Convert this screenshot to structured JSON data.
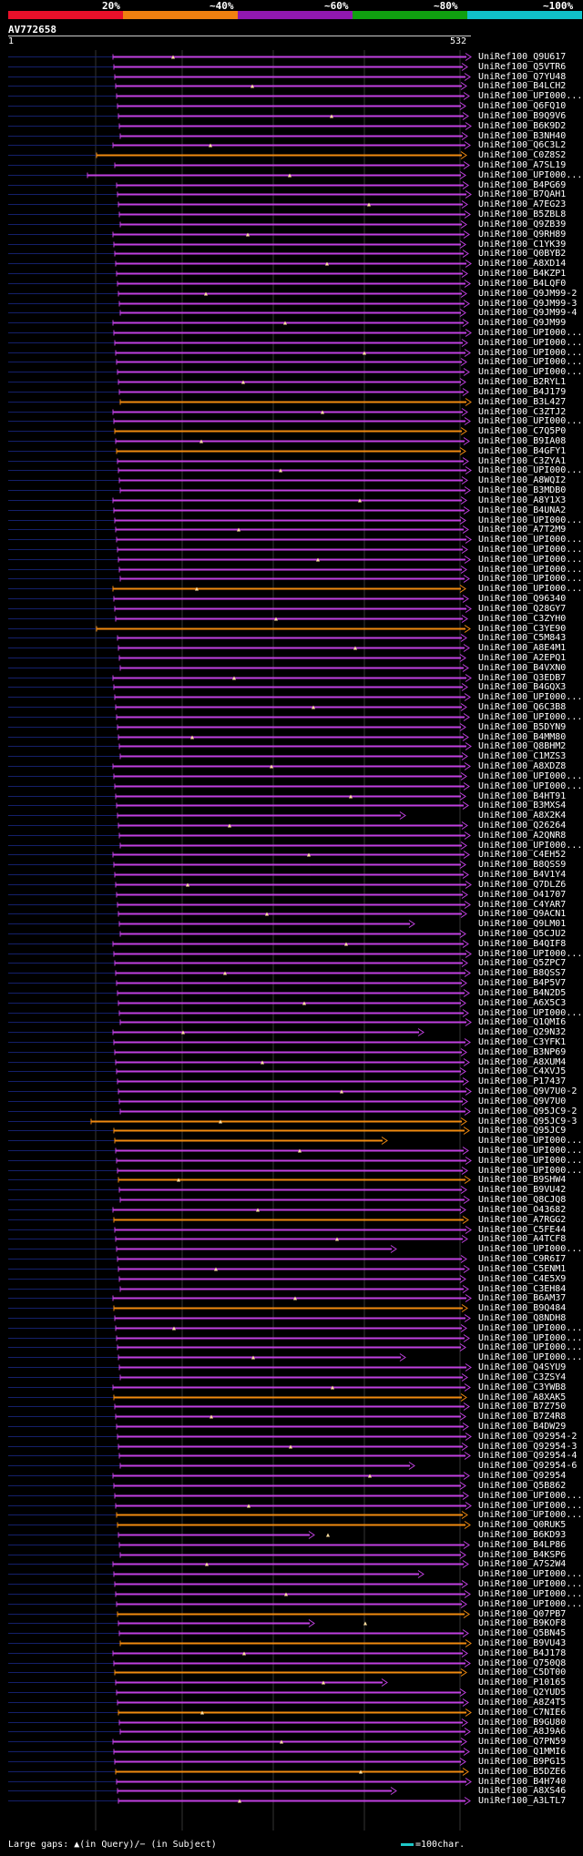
{
  "header": {
    "legend_colors": [
      "#e8102a",
      "#f08010",
      "#9018b0",
      "#10a010",
      "#10c0c8"
    ],
    "pct_labels": [
      "20%",
      "~40%",
      "~60%",
      "~80%",
      "~100%"
    ],
    "query_name": "AV772658",
    "scale_start": "1",
    "scale_end": "532"
  },
  "hit_colors": {
    "magenta": "#c040e0",
    "orange": "#f08a10"
  },
  "hits": [
    "UniRef100_Q9U617",
    "UniRef100_Q5VTR6",
    "UniRef100_Q7YU48",
    "UniRef100_B4LCH2",
    "UniRef100_UPI000...",
    "UniRef100_Q6FQ10",
    "UniRef100_B9Q9V6",
    "UniRef100_B6K9D2",
    "UniRef100_B3NH40",
    "UniRef100_Q6C3L2",
    "UniRef100_C0Z8S2",
    "UniRef100_A7SL19",
    "UniRef100_UPI000...",
    "UniRef100_B4PG69",
    "UniRef100_B7QAH1",
    "UniRef100_A7EG23",
    "UniRef100_B5ZBL8",
    "UniRef100_Q9ZB39",
    "UniRef100_Q9RH89",
    "UniRef100_C1YK39",
    "UniRef100_Q0BYB2",
    "UniRef100_A8XD14",
    "UniRef100_B4KZP1",
    "UniRef100_B4LQF0",
    "UniRef100_Q9JM99-2",
    "UniRef100_Q9JM99-3",
    "UniRef100_Q9JM99-4",
    "UniRef100_Q9JM99",
    "UniRef100_UPI000...",
    "UniRef100_UPI000...",
    "UniRef100_UPI000...",
    "UniRef100_UPI000...",
    "UniRef100_UPI000...",
    "UniRef100_B2RYL1",
    "UniRef100_B4J179",
    "UniRef100_B3L427",
    "UniRef100_C3ZTJ2",
    "UniRef100_UPI000...",
    "UniRef100_C7Q5P0",
    "UniRef100_B9IA08",
    "UniRef100_B4GFY1",
    "UniRef100_C3ZYA1",
    "UniRef100_UPI000...",
    "UniRef100_A8WQI2",
    "UniRef100_B3MDB0",
    "UniRef100_A8Y1X3",
    "UniRef100_B4UNA2",
    "UniRef100_UPI000...",
    "UniRef100_A7T2M9",
    "UniRef100_UPI000...",
    "UniRef100_UPI000...",
    "UniRef100_UPI000...",
    "UniRef100_UPI000...",
    "UniRef100_UPI000...",
    "UniRef100_UPI000...",
    "UniRef100_Q96340",
    "UniRef100_Q28GY7",
    "UniRef100_C3ZYH0",
    "UniRef100_C3YE90",
    "UniRef100_C5M843",
    "UniRef100_A8E4M1",
    "UniRef100_A2EPQ1",
    "UniRef100_B4VXN0",
    "UniRef100_Q3EDB7",
    "UniRef100_B4GQX3",
    "UniRef100_UPI000...",
    "UniRef100_Q6C3B8",
    "UniRef100_UPI000...",
    "UniRef100_B5DYN9",
    "UniRef100_B4MM80",
    "UniRef100_Q8BHM2",
    "UniRef100_C1MZS3",
    "UniRef100_A8XDZ8",
    "UniRef100_UPI000...",
    "UniRef100_UPI000...",
    "UniRef100_B4HT91",
    "UniRef100_B3MXS4",
    "UniRef100_A8X2K4",
    "UniRef100_Q26264",
    "UniRef100_A2QNR8",
    "UniRef100_UPI000...",
    "UniRef100_C4EH52",
    "UniRef100_B8QSS9",
    "UniRef100_B4V1Y4",
    "UniRef100_Q7DLZ6",
    "UniRef100_O41707",
    "UniRef100_C4YAR7",
    "UniRef100_Q9ACN1",
    "UniRef100_Q9LM01",
    "UniRef100_Q5CJU2",
    "UniRef100_B4QIF8",
    "UniRef100_UPI000...",
    "UniRef100_Q5ZPC7",
    "UniRef100_B8QSS7",
    "UniRef100_B4P5V7",
    "UniRef100_B4N2D5",
    "UniRef100_A6X5C3",
    "UniRef100_UPI000...",
    "UniRef100_Q1QMI6",
    "UniRef100_Q29N32",
    "UniRef100_C3YFK1",
    "UniRef100_B3NP69",
    "UniRef100_A8XUM4",
    "UniRef100_C4XVJ5",
    "UniRef100_P17437",
    "UniRef100_Q9V7U0-2",
    "UniRef100_Q9V7U0",
    "UniRef100_Q95JC9-2",
    "UniRef100_Q95JC9-3",
    "UniRef100_Q95JC9",
    "UniRef100_UPI000...",
    "UniRef100_UPI000...",
    "UniRef100_UPI000...",
    "UniRef100_UPI000...",
    "UniRef100_B9SHW4",
    "UniRef100_B9VU42",
    "UniRef100_Q8CJQ8",
    "UniRef100_O43682",
    "UniRef100_A7RGG2",
    "UniRef100_C5FE44",
    "UniRef100_A4TCF8",
    "UniRef100_UPI000...",
    "UniRef100_C9R6I7",
    "UniRef100_C5ENM1",
    "UniRef100_C4E5X9",
    "UniRef100_C3EH84",
    "UniRef100_B6AM37",
    "UniRef100_B9Q484",
    "UniRef100_Q8NDH8",
    "UniRef100_UPI000...",
    "UniRef100_UPI000...",
    "UniRef100_UPI000...",
    "UniRef100_UPI000...",
    "UniRef100_Q4SYU9",
    "UniRef100_C3ZSY4",
    "UniRef100_C3YWB8",
    "UniRef100_A8XAK5",
    "UniRef100_B7Z750",
    "UniRef100_B7Z4R8",
    "UniRef100_B4DW29",
    "UniRef100_Q92954-2",
    "UniRef100_Q92954-3",
    "UniRef100_Q92954-4",
    "UniRef100_Q92954-6",
    "UniRef100_Q92954",
    "UniRef100_Q5B862",
    "UniRef100_UPI000...",
    "UniRef100_UPI000...",
    "UniRef100_UPI000...",
    "UniRef100_Q0RUK5",
    "UniRef100_B6KD93",
    "UniRef100_B4LP86",
    "UniRef100_B4KSP6",
    "UniRef100_A7S2W4",
    "UniRef100_UPI000...",
    "UniRef100_UPI000...",
    "UniRef100_UPI000...",
    "UniRef100_UPI000...",
    "UniRef100_Q07PB7",
    "UniRef100_B9KOF8",
    "UniRef100_Q5BN45",
    "UniRef100_B9VU43",
    "UniRef100_B4J178",
    "UniRef100_Q750Q8",
    "UniRef100_C5DT00",
    "UniRef100_P10165",
    "UniRef100_Q2YUD5",
    "UniRef100_A8Z4T5",
    "UniRef100_C7NIE6",
    "UniRef100_B9GU80",
    "UniRef100_A8J9A6",
    "UniRef100_Q7PN59",
    "UniRef100_Q1MMI6",
    "UniRef100_B9PG15",
    "UniRef100_B5DZE6",
    "UniRef100_B4H740",
    "UniRef100_A8XS46",
    "UniRef100_A3LTL7"
  ],
  "footer": {
    "legend": "Large gaps: ▲(in Query)/− (in Subject)",
    "scale": "=100char."
  }
}
